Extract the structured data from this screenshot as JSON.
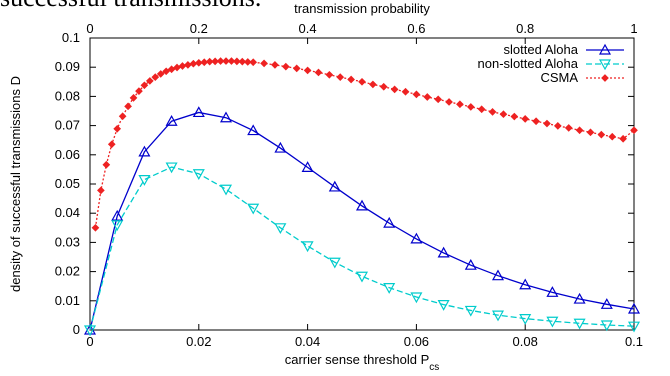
{
  "page": {
    "clipped_text": "successful transmissions."
  },
  "chart_data": {
    "type": "line",
    "xlabel": "carrier sense threshold P",
    "xlabel_sub": "cs",
    "x2label": "transmission probability",
    "ylabel": "density of successful transmissions D",
    "xlim": [
      0,
      0.1
    ],
    "x2lim": [
      0,
      1
    ],
    "ylim": [
      0,
      0.1
    ],
    "grid": false,
    "legend_position": "top-right",
    "xticks": [
      "0",
      "0.02",
      "0.04",
      "0.06",
      "0.08",
      "0.1"
    ],
    "x2ticks": [
      "0",
      "0.2",
      "0.4",
      "0.6",
      "0.8",
      "1"
    ],
    "yticks": [
      "0",
      "0.01",
      "0.02",
      "0.03",
      "0.04",
      "0.05",
      "0.06",
      "0.07",
      "0.08",
      "0.09",
      "0.1"
    ],
    "series": [
      {
        "name": "slotted Aloha",
        "color": "#0000cc",
        "dash": "solid",
        "marker": "triangle-up",
        "x": [
          0,
          0.005,
          0.01,
          0.015,
          0.02,
          0.025,
          0.03,
          0.035,
          0.04,
          0.045,
          0.05,
          0.055,
          0.06,
          0.065,
          0.07,
          0.075,
          0.08,
          0.085,
          0.09,
          0.095,
          0.1
        ],
        "y": [
          0,
          0.039,
          0.061,
          0.0715,
          0.0745,
          0.0727,
          0.0683,
          0.0623,
          0.0557,
          0.049,
          0.0425,
          0.0366,
          0.0312,
          0.0264,
          0.0222,
          0.0186,
          0.0155,
          0.0129,
          0.0106,
          0.0088,
          0.0072
        ]
      },
      {
        "name": "non-slotted Aloha",
        "color": "#00cccc",
        "dash": "dashed",
        "marker": "triangle-down",
        "x": [
          0,
          0.005,
          0.01,
          0.015,
          0.02,
          0.025,
          0.03,
          0.035,
          0.04,
          0.045,
          0.05,
          0.055,
          0.06,
          0.065,
          0.07,
          0.075,
          0.08,
          0.085,
          0.09,
          0.095,
          0.1
        ],
        "y": [
          0,
          0.036,
          0.0515,
          0.0558,
          0.0535,
          0.0482,
          0.0417,
          0.035,
          0.0288,
          0.0232,
          0.0184,
          0.0145,
          0.0113,
          0.0087,
          0.0067,
          0.0051,
          0.0039,
          0.003,
          0.0023,
          0.0017,
          0.0013
        ]
      },
      {
        "name": "CSMA",
        "color": "#ee2222",
        "dash": "dotted",
        "marker": "diamond",
        "x": [
          0.001,
          0.002,
          0.003,
          0.004,
          0.005,
          0.006,
          0.007,
          0.008,
          0.009,
          0.01,
          0.011,
          0.012,
          0.013,
          0.014,
          0.015,
          0.016,
          0.017,
          0.018,
          0.019,
          0.02,
          0.021,
          0.022,
          0.023,
          0.024,
          0.025,
          0.026,
          0.027,
          0.028,
          0.029,
          0.03,
          0.032,
          0.034,
          0.036,
          0.038,
          0.04,
          0.042,
          0.044,
          0.046,
          0.048,
          0.05,
          0.052,
          0.054,
          0.056,
          0.058,
          0.06,
          0.062,
          0.064,
          0.066,
          0.068,
          0.07,
          0.072,
          0.074,
          0.076,
          0.078,
          0.08,
          0.082,
          0.084,
          0.086,
          0.088,
          0.09,
          0.092,
          0.094,
          0.096,
          0.098,
          0.1
        ],
        "y": [
          0.035,
          0.0478,
          0.0566,
          0.0636,
          0.0689,
          0.0732,
          0.0766,
          0.0795,
          0.0818,
          0.0838,
          0.0853,
          0.0866,
          0.0877,
          0.0886,
          0.0893,
          0.0899,
          0.0904,
          0.0908,
          0.0912,
          0.0915,
          0.0917,
          0.0919,
          0.092,
          0.0921,
          0.0921,
          0.0921,
          0.092,
          0.0919,
          0.0918,
          0.0917,
          0.0913,
          0.0908,
          0.0902,
          0.0896,
          0.0889,
          0.0882,
          0.0874,
          0.0866,
          0.0858,
          0.085,
          0.0841,
          0.0833,
          0.0824,
          0.0816,
          0.0807,
          0.0798,
          0.079,
          0.0781,
          0.0773,
          0.0764,
          0.0756,
          0.0747,
          0.0739,
          0.0731,
          0.0723,
          0.0715,
          0.0707,
          0.0699,
          0.0692,
          0.0684,
          0.0677,
          0.0669,
          0.0662,
          0.0655,
          0.0684
        ]
      }
    ]
  }
}
